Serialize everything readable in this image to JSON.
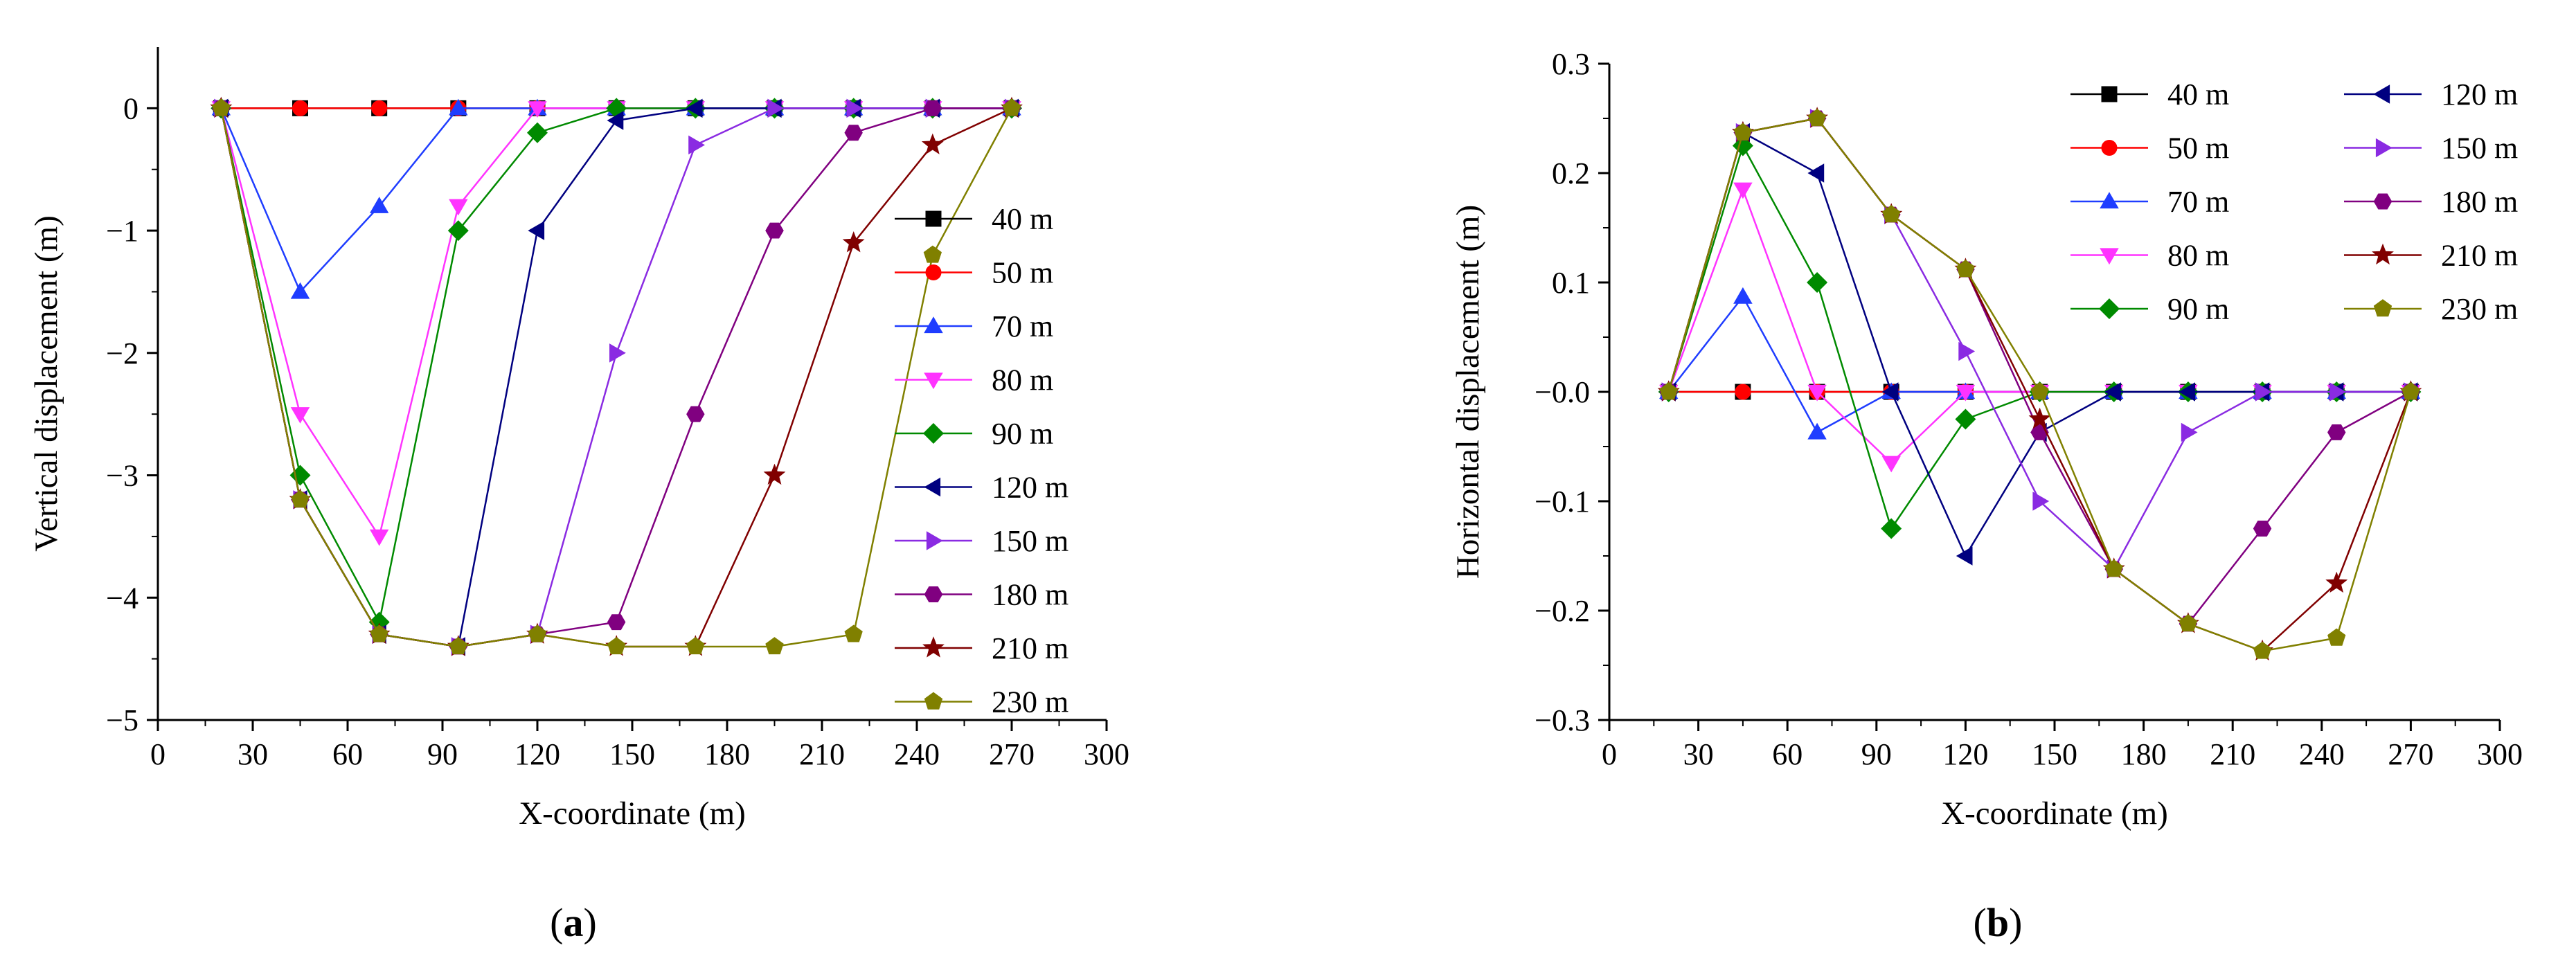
{
  "figure": {
    "series_names": [
      "40 m",
      "50 m",
      "70 m",
      "80 m",
      "90 m",
      "120 m",
      "150 m",
      "180 m",
      "210 m",
      "230 m"
    ],
    "colors": {
      "40 m": "#000000",
      "50 m": "#ff0000",
      "70 m": "#1f3dff",
      "80 m": "#ff33ff",
      "90 m": "#008a00",
      "120 m": "#000080",
      "150 m": "#8a2be2",
      "180 m": "#800080",
      "210 m": "#800000",
      "230 m": "#808000"
    },
    "markers": {
      "40 m": "square",
      "50 m": "circle",
      "70 m": "triangle-up",
      "80 m": "triangle-down",
      "90 m": "diamond",
      "120 m": "triangle-left",
      "150 m": "triangle-right",
      "180 m": "hexagon",
      "210 m": "star",
      "230 m": "pentagon"
    }
  },
  "chart_data": [
    {
      "type": "line",
      "caption": {
        "open": "(",
        "letter": "a",
        "close": ")"
      },
      "xlabel": "X-coordinate (m)",
      "ylabel": "Vertical displacement (m)",
      "xlim": [
        0,
        300
      ],
      "ylim": [
        -5,
        0.5
      ],
      "xticks": [
        0,
        30,
        60,
        90,
        120,
        150,
        180,
        210,
        240,
        270,
        300
      ],
      "yticks": [
        -5,
        -4,
        -3,
        -2,
        -1,
        0
      ],
      "x": [
        20,
        45,
        70,
        95,
        120,
        145,
        170,
        195,
        220,
        245,
        270
      ],
      "legend_position": "right",
      "legend_columns": 1,
      "series": [
        {
          "name": "40 m",
          "values": [
            0,
            0,
            0,
            0,
            0,
            0,
            0,
            0,
            0,
            0,
            0
          ]
        },
        {
          "name": "50 m",
          "values": [
            0,
            0,
            0,
            0,
            0,
            0,
            0,
            0,
            0,
            0,
            0
          ]
        },
        {
          "name": "70 m",
          "values": [
            0,
            -1.5,
            -0.8,
            0,
            0,
            0,
            0,
            0,
            0,
            0,
            0
          ]
        },
        {
          "name": "80 m",
          "values": [
            0,
            -2.5,
            -3.5,
            -0.8,
            0,
            0,
            0,
            0,
            0,
            0,
            0
          ]
        },
        {
          "name": "90 m",
          "values": [
            0,
            -3.0,
            -4.2,
            -1.0,
            -0.2,
            0,
            0,
            0,
            0,
            0,
            0
          ]
        },
        {
          "name": "120 m",
          "values": [
            0,
            -3.2,
            -4.3,
            -4.4,
            -1.0,
            -0.1,
            0,
            0,
            0,
            0,
            0
          ]
        },
        {
          "name": "150 m",
          "values": [
            0,
            -3.2,
            -4.3,
            -4.4,
            -4.3,
            -2.0,
            -0.3,
            0,
            0,
            0,
            0
          ]
        },
        {
          "name": "180 m",
          "values": [
            0,
            -3.2,
            -4.3,
            -4.4,
            -4.3,
            -4.2,
            -2.5,
            -1.0,
            -0.2,
            0,
            0
          ]
        },
        {
          "name": "210 m",
          "values": [
            0,
            -3.2,
            -4.3,
            -4.4,
            -4.3,
            -4.4,
            -4.4,
            -3.0,
            -1.1,
            -0.3,
            0
          ]
        },
        {
          "name": "230 m",
          "values": [
            0,
            -3.2,
            -4.3,
            -4.4,
            -4.3,
            -4.4,
            -4.4,
            -4.4,
            -4.3,
            -1.2,
            0
          ]
        }
      ]
    },
    {
      "type": "line",
      "caption": {
        "open": "(",
        "letter": "b",
        "close": ")"
      },
      "xlabel": "X-coordinate (m)",
      "ylabel": "Horizontal displacement (m)",
      "xlim": [
        0,
        300
      ],
      "ylim": [
        -0.3,
        0.3
      ],
      "xticks": [
        0,
        30,
        60,
        90,
        120,
        150,
        180,
        210,
        240,
        270,
        300
      ],
      "yticks": [
        -0.3,
        -0.2,
        -0.1,
        0.0,
        0.1,
        0.2,
        0.3
      ],
      "ytick_labels": [
        "−0.3",
        "−0.2",
        "−0.1",
        "−0.0",
        "0.1",
        "0.2",
        "0.3"
      ],
      "x": [
        20,
        45,
        70,
        95,
        120,
        145,
        170,
        195,
        220,
        245,
        270
      ],
      "legend_position": "top-right",
      "legend_columns": 2,
      "series": [
        {
          "name": "40 m",
          "values": [
            0,
            0,
            0,
            0,
            0,
            0,
            0,
            0,
            0,
            0,
            0
          ]
        },
        {
          "name": "50 m",
          "values": [
            0,
            0,
            0,
            0,
            0,
            0,
            0,
            0,
            0,
            0,
            0
          ]
        },
        {
          "name": "70 m",
          "values": [
            0,
            0.087,
            -0.037,
            0,
            0,
            0,
            0,
            0,
            0,
            0,
            0
          ]
        },
        {
          "name": "80 m",
          "values": [
            0,
            0.185,
            0,
            -0.065,
            0,
            0,
            0,
            0,
            0,
            0,
            0
          ]
        },
        {
          "name": "90 m",
          "values": [
            0,
            0.225,
            0.1,
            -0.125,
            -0.025,
            0,
            0,
            0,
            0,
            0,
            0
          ]
        },
        {
          "name": "120 m",
          "values": [
            0,
            0.237,
            0.2,
            0.0,
            -0.15,
            -0.037,
            0,
            0,
            0,
            0,
            0
          ]
        },
        {
          "name": "150 m",
          "values": [
            0,
            0.237,
            0.25,
            0.162,
            0.037,
            -0.1,
            -0.162,
            -0.037,
            0,
            0,
            0
          ]
        },
        {
          "name": "180 m",
          "values": [
            0,
            0.237,
            0.25,
            0.162,
            0.112,
            -0.037,
            -0.162,
            -0.212,
            -0.125,
            -0.037,
            0
          ]
        },
        {
          "name": "210 m",
          "values": [
            0,
            0.237,
            0.25,
            0.162,
            0.112,
            -0.025,
            -0.162,
            -0.212,
            -0.237,
            -0.175,
            0
          ]
        },
        {
          "name": "230 m",
          "values": [
            0,
            0.237,
            0.25,
            0.162,
            0.112,
            0,
            -0.162,
            -0.212,
            -0.237,
            -0.225,
            0
          ]
        }
      ]
    }
  ]
}
